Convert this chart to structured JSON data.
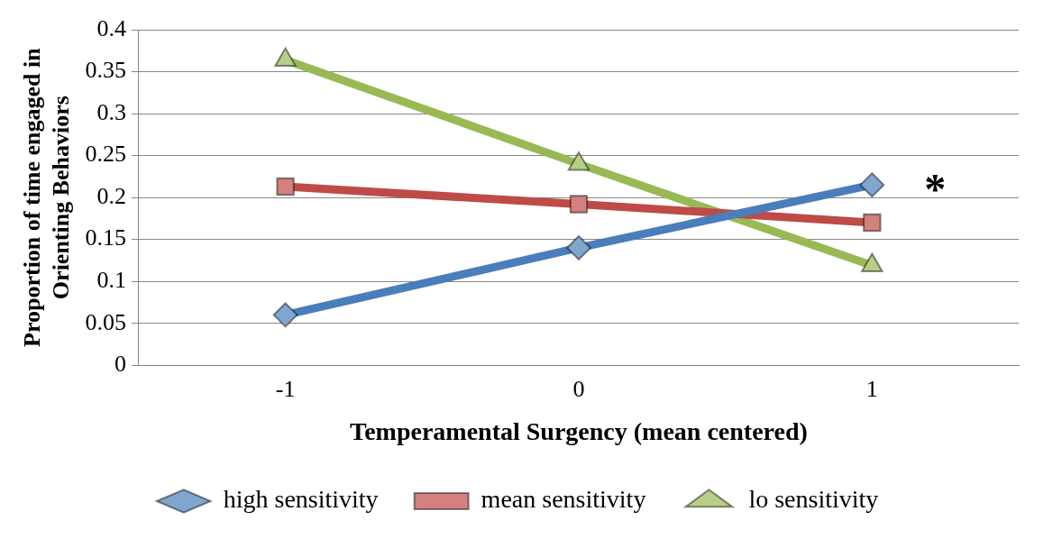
{
  "chart_data": {
    "type": "line",
    "xlabel": "Temperamental Surgency (mean centered)",
    "ylabel": "Proportion of time engaged in Orienting Behaviors",
    "categories": [
      "-1",
      "0",
      "1"
    ],
    "series": [
      {
        "name": "high sensitivity",
        "color": "#4a7ebb",
        "marker": "diamond",
        "values": [
          0.06,
          0.14,
          0.215
        ]
      },
      {
        "name": "mean sensitivity",
        "color": "#be4b48",
        "marker": "square",
        "values": [
          0.213,
          0.192,
          0.17
        ]
      },
      {
        "name": "lo sensitivity",
        "color": "#98b954",
        "marker": "triangle",
        "values": [
          0.364,
          0.24,
          0.119
        ]
      }
    ],
    "ylim": [
      0,
      0.4
    ],
    "yticks": [
      0,
      0.05,
      0.1,
      0.15,
      0.2,
      0.25,
      0.3,
      0.35,
      0.4
    ],
    "grid": "y",
    "legend": "bottom",
    "line_style": "solid",
    "annotations": [
      {
        "text": "*",
        "x": "1",
        "y": 0.215
      }
    ]
  }
}
